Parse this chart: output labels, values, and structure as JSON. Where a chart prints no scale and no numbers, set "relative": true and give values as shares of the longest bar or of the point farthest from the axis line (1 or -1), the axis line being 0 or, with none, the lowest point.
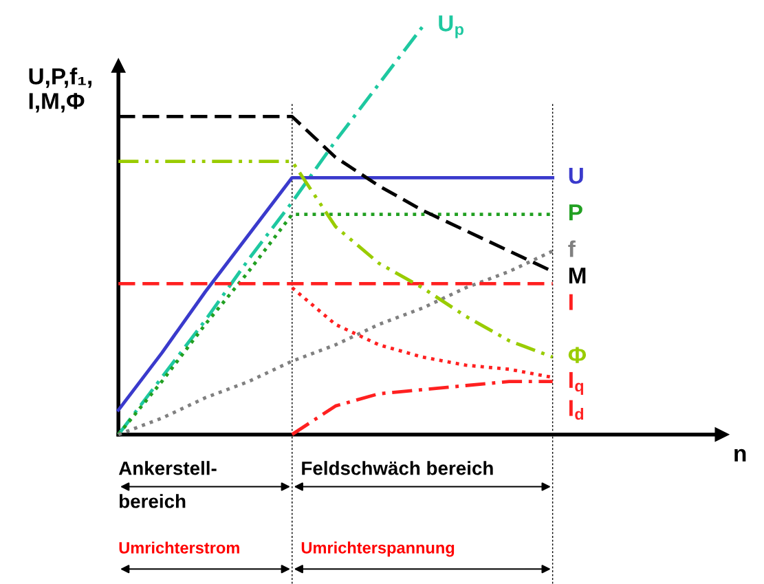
{
  "chart_data": {
    "type": "line",
    "relative": true,
    "ylabel": "U,P,f₁,\nI,M,Φ",
    "categories": [
      null,
      null,
      null,
      null,
      null,
      null,
      null,
      null,
      null,
      null,
      null
    ],
    "series": [
      {
        "name": "U$_{p}$",
        "color": "#1ec8a0",
        "line_style": "dashdot",
        "values": [
          0,
          0.14,
          0.28,
          0.43,
          0.57,
          0.72,
          0.86,
          1,
          null,
          null,
          null
        ]
      },
      {
        "name": "U",
        "color": "#3a3acc",
        "line_style": "solid",
        "values": [
          0.06,
          0.2,
          0.35,
          0.49,
          0.63,
          0.63,
          0.63,
          0.63,
          0.63,
          0.63,
          0.63
        ]
      },
      {
        "name": "P",
        "color": "#22a022",
        "line_style": "dotted",
        "values": [
          0,
          0.13,
          0.27,
          0.4,
          0.54,
          0.54,
          0.54,
          0.54,
          0.54,
          0.54,
          0.54
        ]
      },
      {
        "name": "f",
        "color": "#808080",
        "line_style": "dotted",
        "values": [
          0,
          0.04,
          0.09,
          0.13,
          0.18,
          0.22,
          0.27,
          0.31,
          0.36,
          0.4,
          0.45
        ]
      },
      {
        "name": "M",
        "color": "#000000",
        "line_style": "dashed",
        "values": [
          0.78,
          0.78,
          0.78,
          0.78,
          0.78,
          0.68,
          0.61,
          0.55,
          0.5,
          0.45,
          0.4
        ]
      },
      {
        "name": "I",
        "color": "#ff2020",
        "line_style": "dashed",
        "values": [
          0.37,
          0.37,
          0.37,
          0.37,
          0.37,
          0.37,
          0.37,
          0.37,
          0.37,
          0.37,
          0.37
        ]
      },
      {
        "name": "Φ",
        "color": "#99cc00",
        "line_style": "dashdotdot",
        "values": [
          0.67,
          0.67,
          0.67,
          0.67,
          0.67,
          0.51,
          0.42,
          0.36,
          0.29,
          0.23,
          0.19
        ]
      },
      {
        "name": "I$_{q}$",
        "color": "#ff2020",
        "line_style": "dotted",
        "values": [
          null,
          null,
          null,
          null,
          0.36,
          0.27,
          0.22,
          0.19,
          0.17,
          0.16,
          0.14
        ]
      },
      {
        "name": "I$_{d}$",
        "color": "#ff2020",
        "line_style": "dashdot",
        "values": [
          null,
          null,
          null,
          null,
          0,
          0.07,
          0.1,
          0.11,
          0.12,
          0.13,
          0.13
        ]
      }
    ],
    "annotations": [
      "Ankerstell-\nbereich",
      "Feldschwäch bereich",
      "Umrichterstrom",
      "Umrichterspannung",
      "n"
    ]
  }
}
